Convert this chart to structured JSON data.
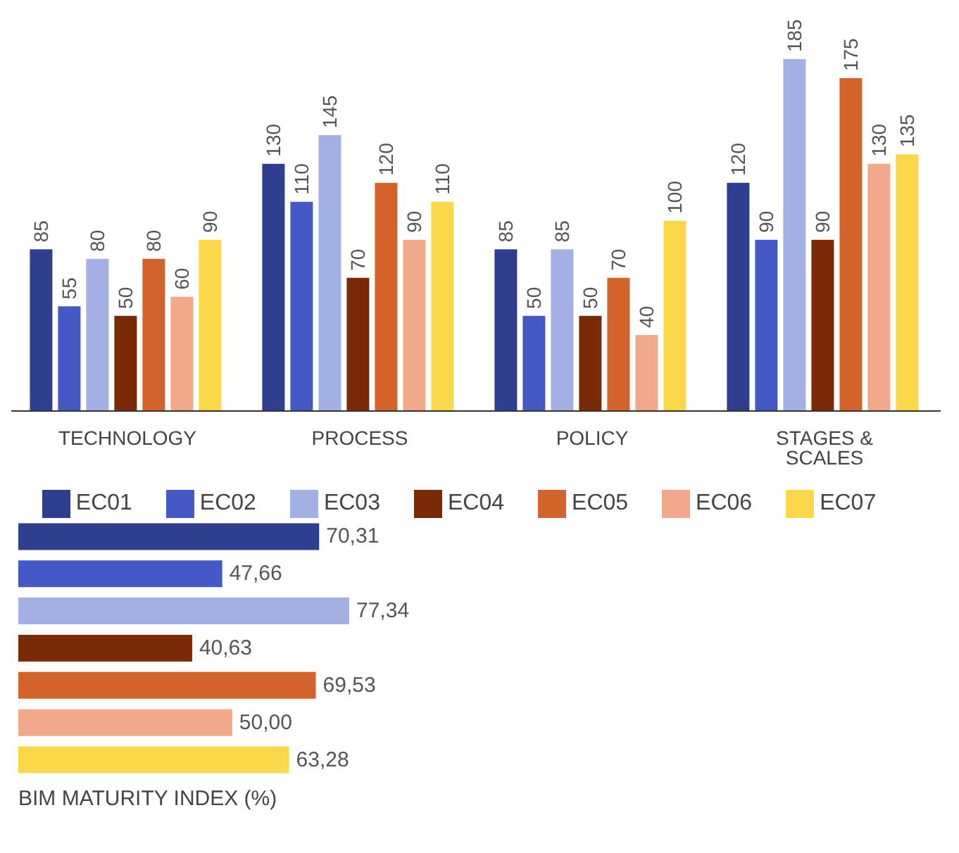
{
  "chart_data": [
    {
      "type": "bar",
      "categories": [
        "TECHNOLOGY",
        "PROCESS",
        "POLICY",
        "STAGES & SCALES"
      ],
      "series": [
        {
          "name": "EC01",
          "color": "#2e3f8f",
          "values": [
            85,
            130,
            85,
            120
          ]
        },
        {
          "name": "EC02",
          "color": "#4459c4",
          "values": [
            55,
            110,
            50,
            90
          ]
        },
        {
          "name": "EC03",
          "color": "#a3b0e3",
          "values": [
            80,
            145,
            85,
            185
          ]
        },
        {
          "name": "EC04",
          "color": "#7a2a07",
          "values": [
            50,
            70,
            50,
            90
          ]
        },
        {
          "name": "EC05",
          "color": "#d4622b",
          "values": [
            80,
            120,
            70,
            175
          ]
        },
        {
          "name": "EC06",
          "color": "#f2a98a",
          "values": [
            60,
            90,
            40,
            130
          ]
        },
        {
          "name": "EC07",
          "color": "#fbd84a",
          "values": [
            90,
            110,
            100,
            135
          ]
        }
      ],
      "data_labels": true,
      "legend": "bottom",
      "grid": false
    },
    {
      "type": "bar",
      "orientation": "horizontal",
      "categories": [
        null,
        null,
        null,
        null,
        null,
        null,
        null
      ],
      "values": [
        70.31,
        47.66,
        77.34,
        40.63,
        69.53,
        50.0,
        63.28
      ],
      "colors": [
        "#2e3f8f",
        "#4459c4",
        "#a3b0e3",
        "#7a2a07",
        "#d4622b",
        "#f2a98a",
        "#fbd84a"
      ],
      "value_labels": [
        "70,31",
        "47,66",
        "77,34",
        "40,63",
        "69,53",
        "50,00",
        "63,28"
      ],
      "xlabel": "BIM MATURITY INDEX (%)",
      "grid": false
    }
  ]
}
